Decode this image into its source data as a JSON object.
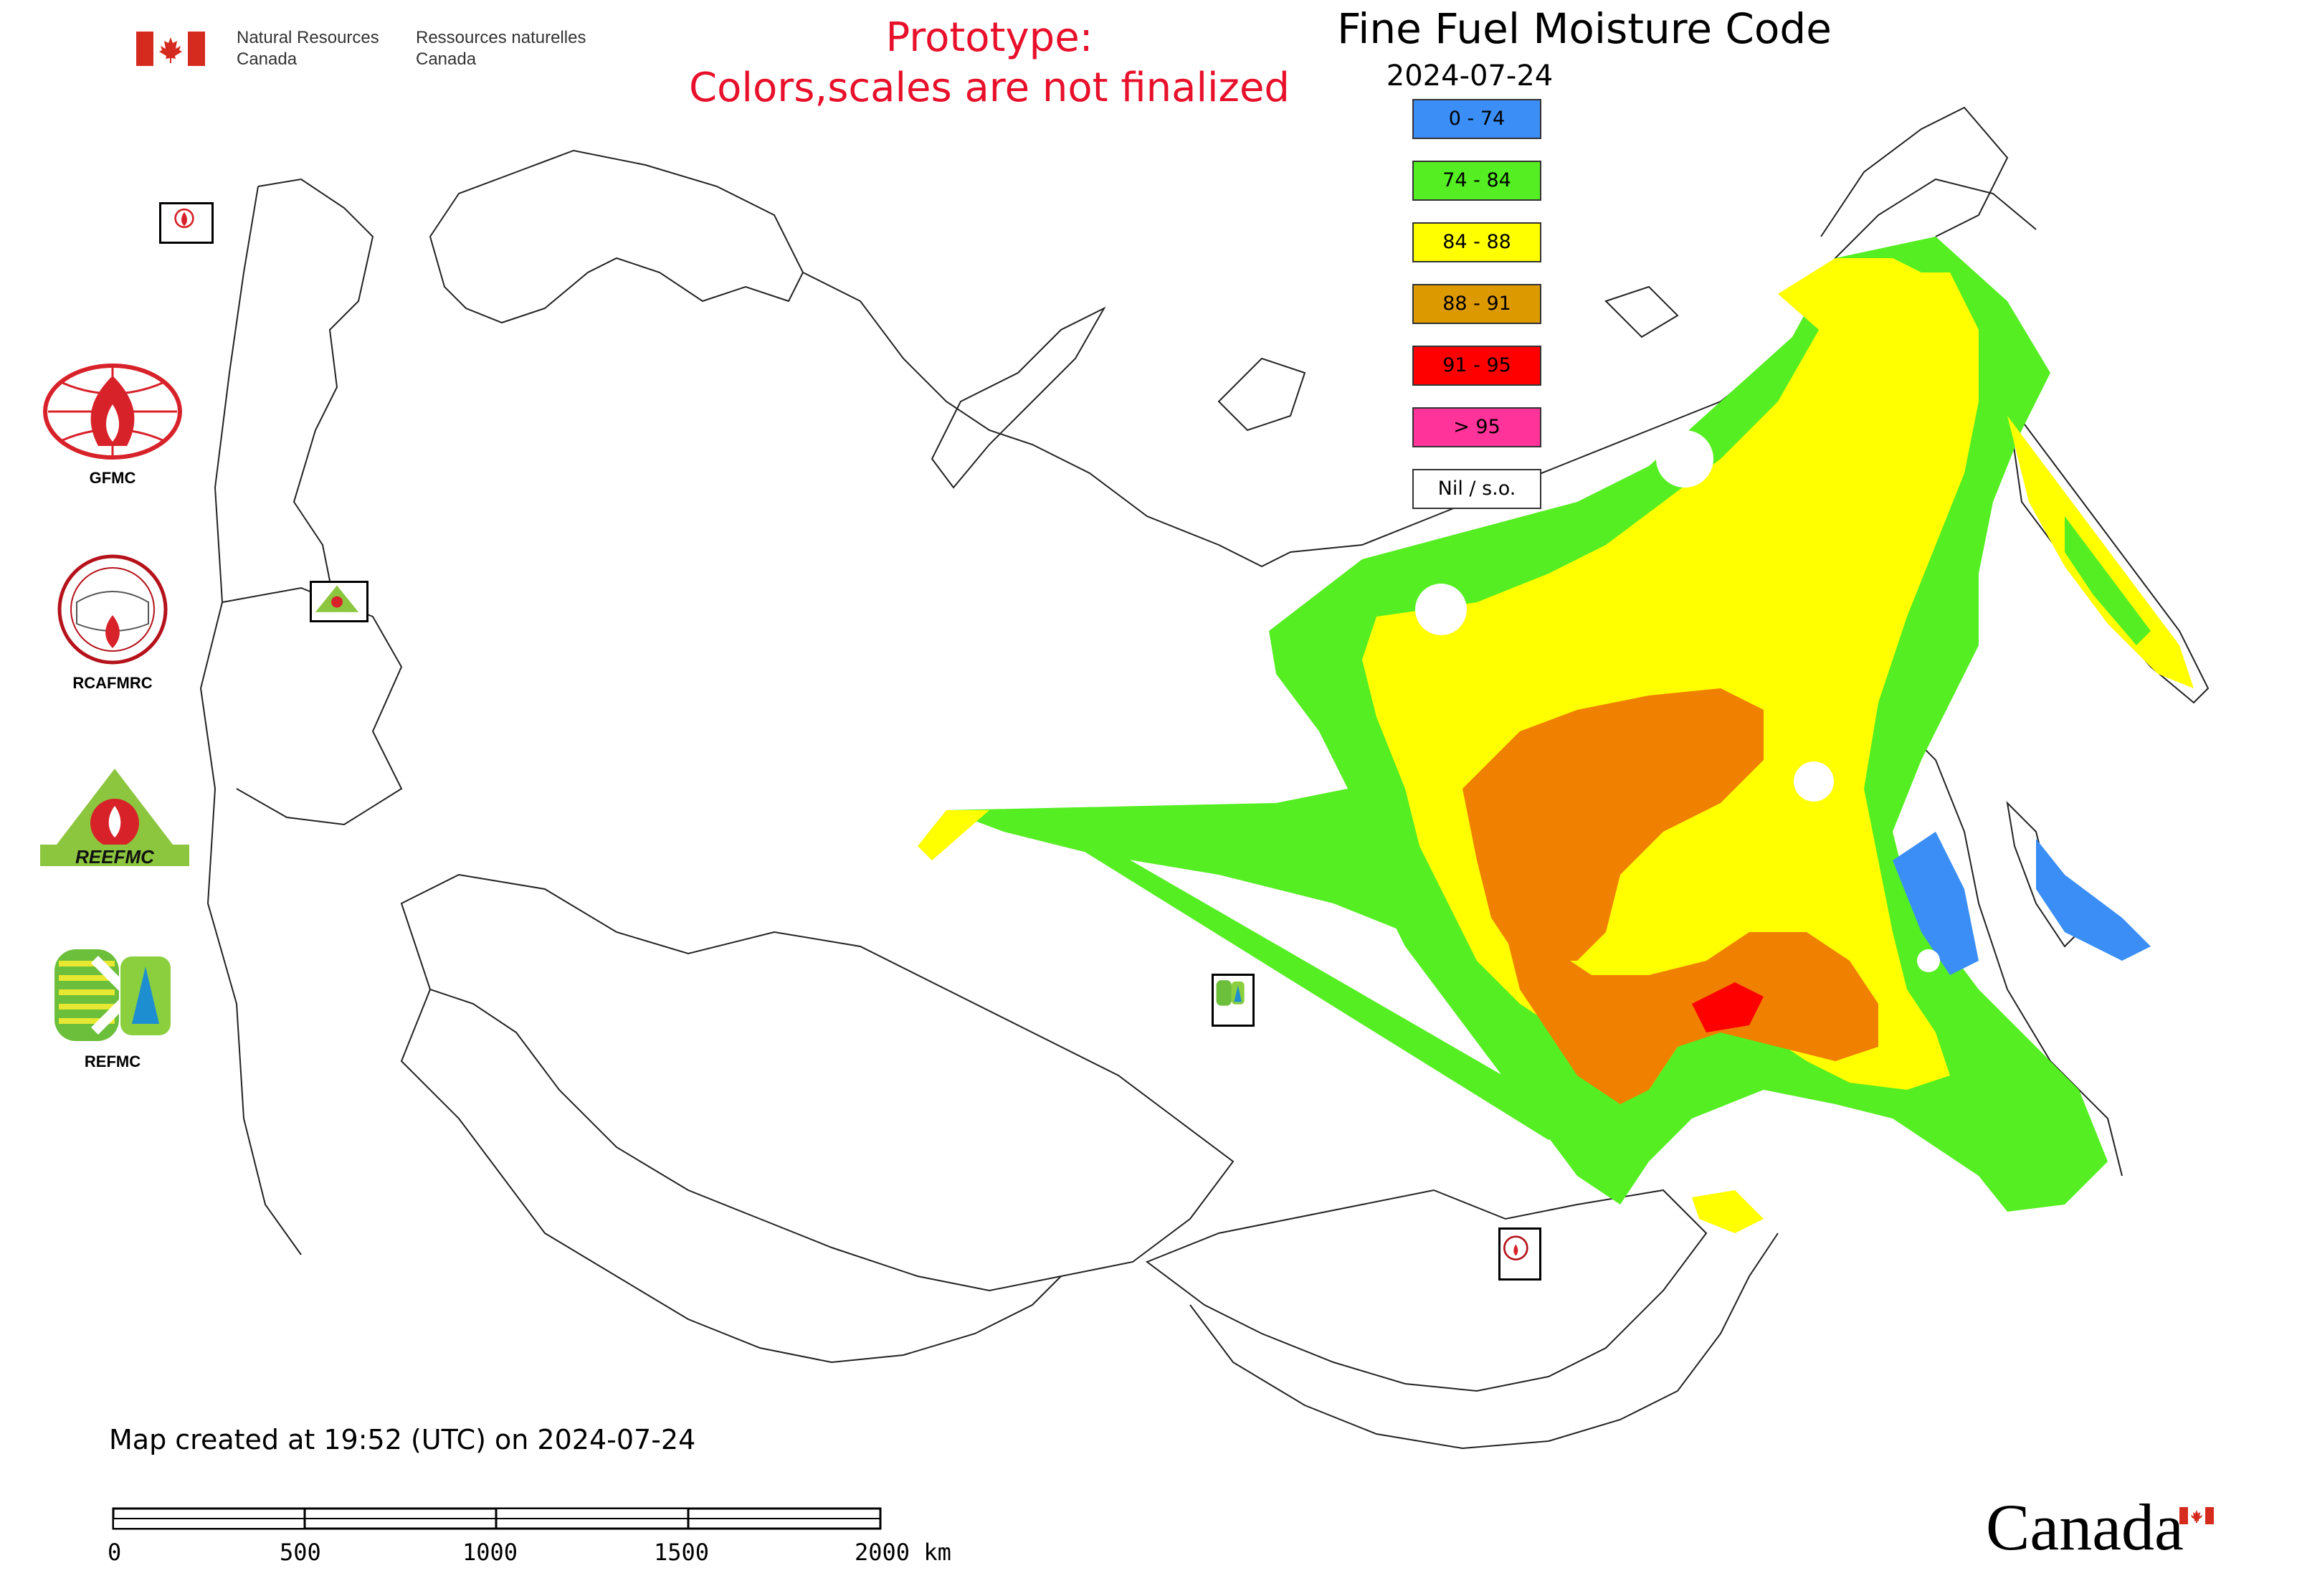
{
  "header": {
    "department_en_line1": "Natural Resources",
    "department_en_line2": "Canada",
    "department_fr_line1": "Ressources naturelles",
    "department_fr_line2": "Canada",
    "flag_icon": "canada-flag-icon"
  },
  "prototype_notice": {
    "line1": "Prototype:",
    "line2": "Colors,scales are not finalized",
    "color": "#e8102a"
  },
  "map_title": "Fine Fuel Moisture Code",
  "map_date": "2024-07-24",
  "legend": [
    {
      "label": "0 - 74",
      "color": "#3a8ef6"
    },
    {
      "label": "74 - 84",
      "color": "#55ee22"
    },
    {
      "label": "84 - 88",
      "color": "#ffff00"
    },
    {
      "label": "88 - 91",
      "color": "#dd9900"
    },
    {
      "label": "91 - 95",
      "color": "#ff0000"
    },
    {
      "label": "> 95",
      "color": "#ff3399"
    },
    {
      "label": "Nil / s.o.",
      "color": "#ffffff"
    }
  ],
  "logos": [
    {
      "label": "GFMC",
      "icon": "gfmc-logo-icon"
    },
    {
      "label": "RCAFMRC",
      "icon": "rcafmrc-logo-icon"
    },
    {
      "label": "",
      "icon": "reefmc-logo-icon",
      "wordmark": "REEFMC"
    },
    {
      "label": "REFMC",
      "icon": "refmc-logo-icon"
    }
  ],
  "map_markers": [
    {
      "name": "GFMC",
      "icon": "gfmc-marker-icon"
    },
    {
      "name": "REEFMC",
      "icon": "reefmc-marker-icon"
    },
    {
      "name": "REFMC",
      "icon": "refmc-marker-icon"
    },
    {
      "name": "RCAFMRC",
      "icon": "rcafmrc-marker-icon"
    }
  ],
  "created_note": "Map created at 19:52 (UTC) on 2024-07-24",
  "scale_bar": {
    "ticks": [
      "0",
      "500",
      "1000",
      "1500",
      "2000 km"
    ]
  },
  "wordmark": "Canada"
}
